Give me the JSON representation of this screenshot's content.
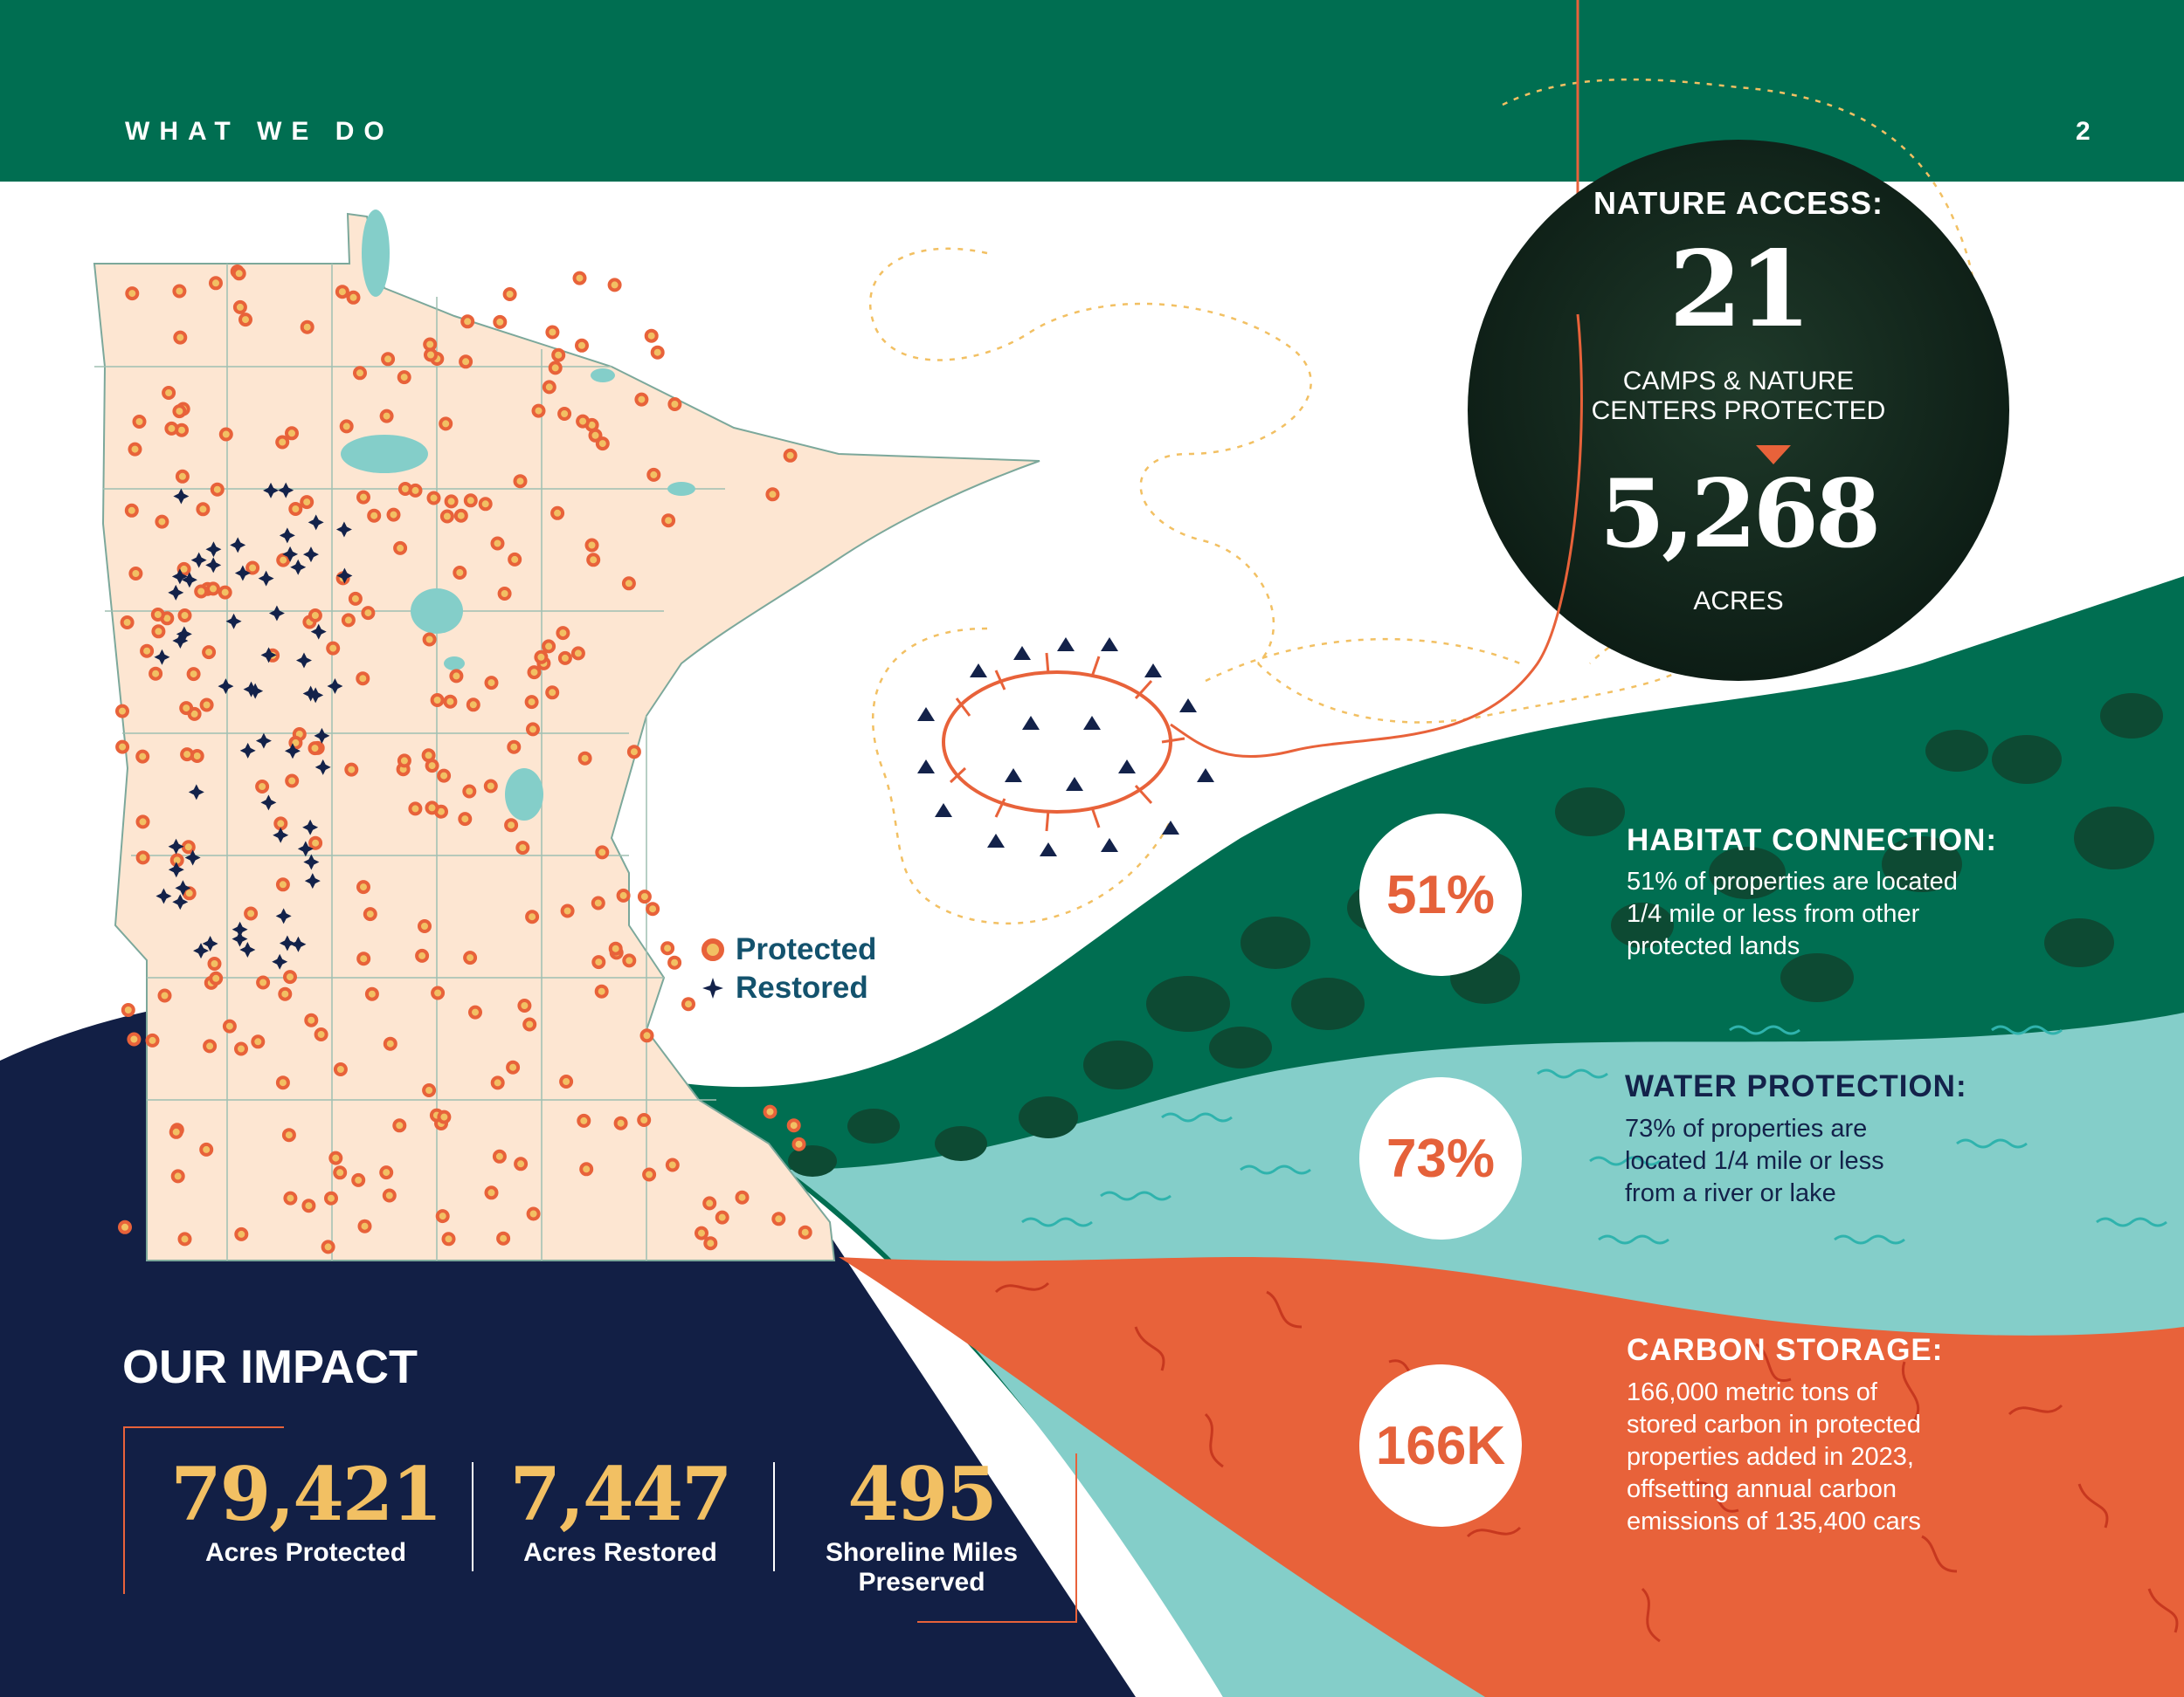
{
  "header": {
    "section_label": "WHAT WE DO",
    "page_number": "2"
  },
  "nature_access": {
    "title": "NATURE ACCESS:",
    "count": "21",
    "count_label_line1": "CAMPS & NATURE",
    "count_label_line2": "CENTERS PROTECTED",
    "acres": "5,268",
    "acres_label": "ACRES"
  },
  "stats": [
    {
      "value": "51%",
      "title": "HABITAT CONNECTION:",
      "desc_lines": [
        "51% of properties are located",
        "1/4 mile or less from other",
        "protected lands"
      ]
    },
    {
      "value": "73%",
      "title": "WATER PROTECTION:",
      "desc_lines": [
        "73% of properties are",
        "located 1/4 mile or less",
        "from a river or lake"
      ]
    },
    {
      "value": "166K",
      "title": "CARBON STORAGE:",
      "desc_lines": [
        "166,000 metric tons of",
        "stored carbon in protected",
        "properties added in 2023,",
        "offsetting annual carbon",
        "emissions of 135,400 cars"
      ]
    }
  ],
  "legend": {
    "protected": "Protected",
    "restored": "Restored"
  },
  "impact": {
    "title": "OUR IMPACT",
    "items": [
      {
        "value": "79,421",
        "label_lines": [
          "Acres Protected"
        ]
      },
      {
        "value": "7,447",
        "label_lines": [
          "Acres Restored"
        ]
      },
      {
        "value": "495",
        "label_lines": [
          "Shoreline Miles",
          "Preserved"
        ]
      }
    ]
  },
  "colors": {
    "green": "#006e51",
    "dark_green": "#005a3f",
    "teal": "#84cec9",
    "orange": "#e8623a",
    "navy": "#121f45",
    "map_fill": "#fde6d2",
    "gold": "#f2c063"
  }
}
